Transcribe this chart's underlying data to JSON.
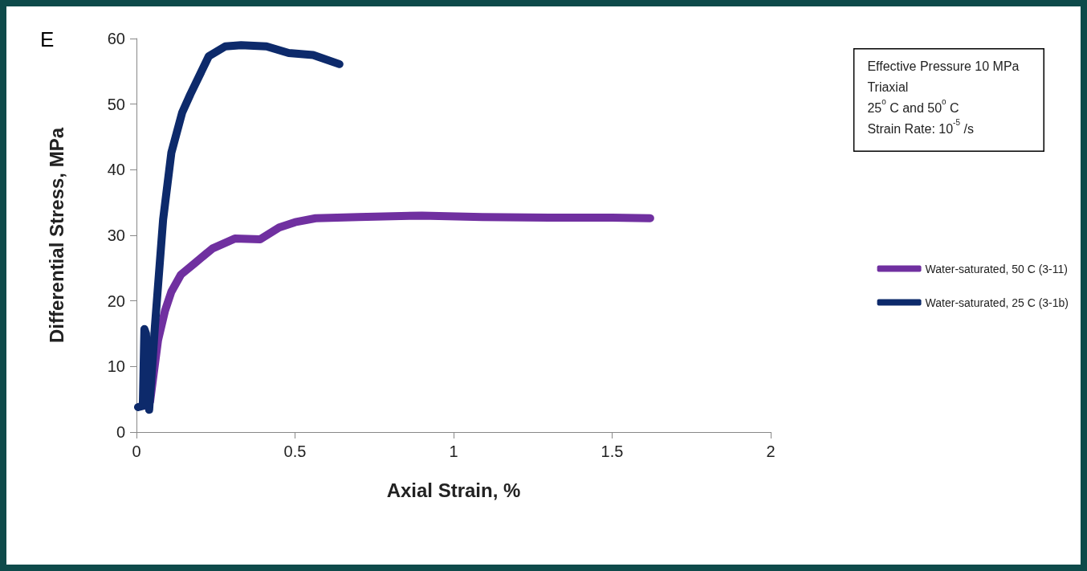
{
  "chart_data": {
    "type": "line",
    "xlabel": "Axial Strain, %",
    "ylabel": "Differential Stress, MPa",
    "annotations": [
      "E",
      "Effective Pressure 10 MPa",
      "Triaxial",
      "25$^{o}$ C and 50$^{o}$ C",
      "Strain Rate: 10$^{-5}$ /s"
    ],
    "xlim": [
      0,
      2
    ],
    "xticks": [
      0,
      0.5,
      1,
      1.5,
      2
    ],
    "ylim": [
      0,
      60
    ],
    "yticks": [
      0,
      10,
      20,
      30,
      40,
      50,
      60
    ],
    "grid": false,
    "legend": "right",
    "marker": "none",
    "line_style": "solid",
    "series": [
      {
        "name": "Water-saturated, 50 C (3-11)",
        "color": "#7030a0",
        "x": [
          0.03,
          0.043,
          0.068,
          0.09,
          0.11,
          0.14,
          0.185,
          0.24,
          0.31,
          0.39,
          0.45,
          0.5,
          0.565,
          0.7,
          0.9,
          1.09,
          1.3,
          1.5,
          1.62
        ],
        "values": [
          4,
          4.7,
          14,
          18.5,
          21.4,
          24,
          25.8,
          28,
          29.5,
          29.4,
          31.2,
          32,
          32.6,
          32.8,
          33,
          32.8,
          32.7,
          32.7,
          32.6
        ]
      },
      {
        "name": "Water-saturated, 25 C (3-1b)",
        "color": "#0d2a6b",
        "x": [
          0.005,
          0.02,
          0.025,
          0.03,
          0.04,
          0.058,
          0.084,
          0.11,
          0.144,
          0.17,
          0.228,
          0.28,
          0.33,
          0.41,
          0.48,
          0.557,
          0.64
        ],
        "values": [
          3.8,
          4,
          15.7,
          15,
          3.4,
          16,
          32.4,
          42.6,
          48.7,
          51.5,
          57.3,
          58.8,
          59,
          58.8,
          57.8,
          57.5,
          56.1
        ]
      }
    ]
  }
}
